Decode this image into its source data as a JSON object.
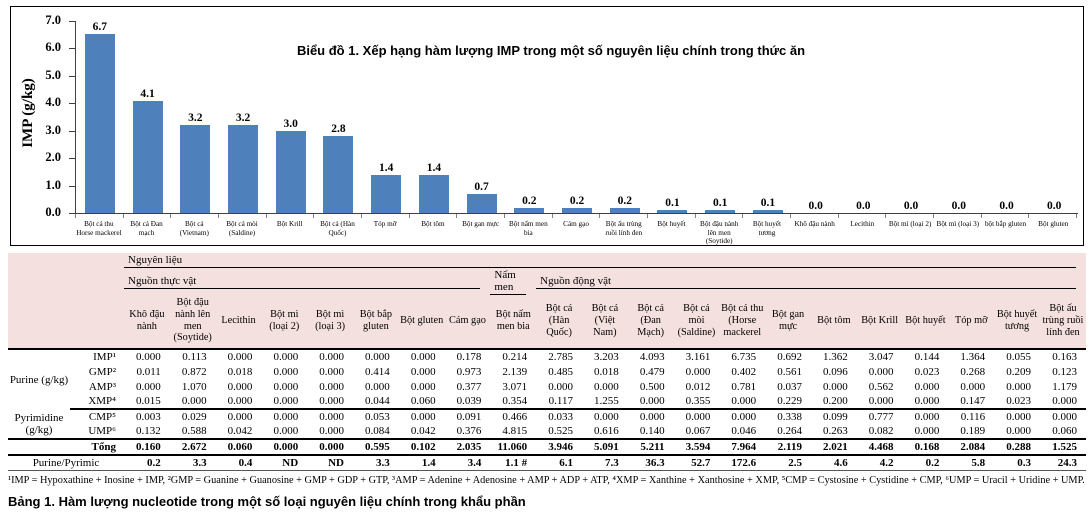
{
  "chart_data": [
    {
      "type": "bar",
      "title": "Biểu đồ 1. Xếp hạng hàm lượng IMP trong một số nguyên liệu chính trong thức ăn",
      "xlabel": "",
      "ylabel": "IMP (g/kg)",
      "ylim": [
        0,
        7
      ],
      "ytick_step": 1.0,
      "grid": false,
      "legend": "none",
      "bar_color": "#4E80BC",
      "categories": [
        "Bột cá thu Horse mackerel",
        "Bột cá Đan mạch",
        "Bột cá (Vietnam)",
        "Bột cá mòi (Saldine)",
        "Bột Krill",
        "Bột cá (Hàn Quốc)",
        "Tóp mỡ",
        "Bột tôm",
        "Bột gan mực",
        "Bột nấm men bia",
        "Cám gạo",
        "Bột ấu trùng ruồi lính đen",
        "Bột huyết",
        "Bột đậu nành lên men (Soytide)",
        "Bột huyết tương",
        "Khô đậu nành",
        "Lecithin",
        "Bột mì (loại 2)",
        "Bột mì (loại 3)",
        "bột bắp gluten",
        "Bột gluten"
      ],
      "values": [
        6.7,
        4.1,
        3.2,
        3.2,
        3.0,
        2.8,
        1.4,
        1.4,
        0.7,
        0.2,
        0.2,
        0.2,
        0.1,
        0.1,
        0.1,
        0.0,
        0.0,
        0.0,
        0.0,
        0.0,
        0.0
      ]
    },
    {
      "type": "table",
      "caption": "Bảng 1. Hàm lượng nucleotide trong một số loại nguyên liệu chính trong khẩu phần",
      "top_header": "Nguyên liệu",
      "column_groups": [
        {
          "label": "Nguồn thực vật",
          "span": 8
        },
        {
          "label": "Nấm men",
          "span": 1
        },
        {
          "label": "Nguồn động vật",
          "span": 12
        }
      ],
      "columns": [
        "Khô đậu nành",
        "Bột đậu nành lên men (Soytide)",
        "Lecithin",
        "Bột mì (loại 2)",
        "Bột mì (loại 3)",
        "Bột bắp gluten",
        "Bột gluten",
        "Cám gạo",
        "Bột nấm men bia",
        "Bột cá (Hàn Quốc)",
        "Bột cá (Việt Nam)",
        "Bột cá (Đan Mạch)",
        "Bột cá mòi (Saldine)",
        "Bột cá thu (Horse mackerel",
        "Bột gan mực",
        "Bột tôm",
        "Bột Krill",
        "Bột huyết",
        "Tóp mỡ",
        "Bột huyết tương",
        "Bột ấu trùng ruồi lính đen"
      ],
      "row_groups": [
        {
          "label": "Purine (g/kg)",
          "row_count": 4
        },
        {
          "label": "Pyrimidine (g/kg)",
          "row_count": 2
        }
      ],
      "rows": [
        {
          "label": "IMP¹",
          "values": [
            "0.000",
            "0.113",
            "0.000",
            "0.000",
            "0.000",
            "0.000",
            "0.000",
            "0.178",
            "0.214",
            "2.785",
            "3.203",
            "4.093",
            "3.161",
            "6.735",
            "0.692",
            "1.362",
            "3.047",
            "0.144",
            "1.364",
            "0.055",
            "0.163"
          ]
        },
        {
          "label": "GMP²",
          "values": [
            "0.011",
            "0.872",
            "0.018",
            "0.000",
            "0.000",
            "0.414",
            "0.000",
            "0.973",
            "2.139",
            "0.485",
            "0.018",
            "0.479",
            "0.000",
            "0.402",
            "0.561",
            "0.096",
            "0.000",
            "0.023",
            "0.268",
            "0.209",
            "0.123"
          ]
        },
        {
          "label": "AMP³",
          "values": [
            "0.000",
            "1.070",
            "0.000",
            "0.000",
            "0.000",
            "0.000",
            "0.000",
            "0.377",
            "3.071",
            "0.000",
            "0.000",
            "0.500",
            "0.012",
            "0.781",
            "0.037",
            "0.000",
            "0.562",
            "0.000",
            "0.000",
            "0.000",
            "1.179"
          ]
        },
        {
          "label": "XMP⁴",
          "values": [
            "0.015",
            "0.000",
            "0.000",
            "0.000",
            "0.000",
            "0.044",
            "0.060",
            "0.039",
            "0.354",
            "0.117",
            "1.255",
            "0.000",
            "0.355",
            "0.000",
            "0.229",
            "0.200",
            "0.000",
            "0.000",
            "0.147",
            "0.023",
            "0.000"
          ]
        },
        {
          "label": "CMP⁵",
          "values": [
            "0.003",
            "0.029",
            "0.000",
            "0.000",
            "0.000",
            "0.053",
            "0.000",
            "0.091",
            "0.466",
            "0.033",
            "0.000",
            "0.000",
            "0.000",
            "0.000",
            "0.338",
            "0.099",
            "0.777",
            "0.000",
            "0.116",
            "0.000",
            "0.000"
          ]
        },
        {
          "label": "UMP⁶",
          "values": [
            "0.132",
            "0.588",
            "0.042",
            "0.000",
            "0.000",
            "0.084",
            "0.042",
            "0.376",
            "4.815",
            "0.525",
            "0.616",
            "0.140",
            "0.067",
            "0.046",
            "0.264",
            "0.263",
            "0.082",
            "0.000",
            "0.189",
            "0.000",
            "0.060"
          ]
        }
      ],
      "total_row": {
        "label": "Tổng",
        "values": [
          "0.160",
          "2.672",
          "0.060",
          "0.000",
          "0.000",
          "0.595",
          "0.102",
          "2.035",
          "11.060",
          "3.946",
          "5.091",
          "5.211",
          "3.594",
          "7.964",
          "2.119",
          "2.021",
          "4.468",
          "0.168",
          "2.084",
          "0.288",
          "1.525"
        ]
      },
      "ratio_row": {
        "label": "Purine/Pyrimic",
        "values": [
          "0.2",
          "3.3",
          "0.4",
          "ND",
          "ND",
          "3.3",
          "1.4",
          "3.4",
          "1.1 #",
          "6.1",
          "7.3",
          "36.3",
          "52.7",
          "172.6",
          "2.5",
          "4.6",
          "4.2",
          "0.2",
          "5.8",
          "0.3",
          "24.3"
        ]
      }
    }
  ],
  "footnote": "¹IMP = Hypoxathine + Inosine + IMP,  ²GMP = Guanine + Guanosine + GMP + GDP + GTP,  ³AMP = Adenine + Adenosine + AMP + ADP + ATP,  ⁴XMP = Xanthine + Xanthosine + XMP,  ⁵CMP = Cystosine + Cystidine + CMP,  ⁶UMP = Uracil + Uridine + UMP.",
  "table_caption": "Bảng 1. Hàm lượng nucleotide trong một số loại nguyên liệu chính trong khẩu phần"
}
